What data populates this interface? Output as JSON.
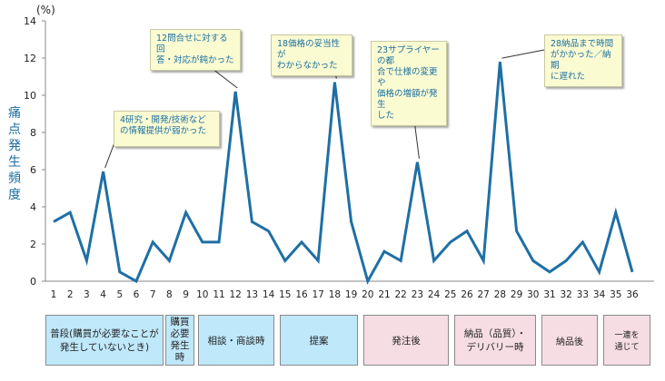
{
  "chart_data": {
    "type": "line",
    "y_unit_label": "(%)",
    "ylabel": "痛点発生頻度",
    "ylim": [
      0,
      14
    ],
    "yticks": [
      "0",
      "2",
      "4",
      "6",
      "8",
      "10",
      "12",
      "14"
    ],
    "categories": [
      "1",
      "2",
      "3",
      "4",
      "5",
      "6",
      "7",
      "8",
      "9",
      "10",
      "11",
      "12",
      "13",
      "14",
      "15",
      "16",
      "17",
      "18",
      "19",
      "20",
      "21",
      "22",
      "23",
      "24",
      "25",
      "26",
      "27",
      "28",
      "29",
      "30",
      "31",
      "32",
      "33",
      "34",
      "35",
      "36"
    ],
    "values": [
      3.2,
      3.7,
      1.1,
      5.9,
      0.5,
      0.0,
      2.1,
      1.1,
      3.7,
      2.1,
      2.1,
      10.2,
      3.2,
      2.7,
      1.1,
      2.1,
      1.1,
      10.7,
      3.2,
      0.0,
      1.6,
      1.1,
      6.4,
      1.1,
      2.1,
      2.7,
      1.1,
      11.8,
      2.7,
      1.1,
      0.5,
      1.1,
      2.1,
      0.5,
      3.7,
      0.5
    ],
    "grid": false,
    "line_color": "#1f6fa5",
    "annotations": [
      {
        "x": "4",
        "text": "4研究・開発/技術など\nの情報提供が弱かった"
      },
      {
        "x": "12",
        "text": "12問合せに対する回\n答・対応が鈍かった"
      },
      {
        "x": "18",
        "text": "18価格の妥当性が\nわからなかった"
      },
      {
        "x": "23",
        "text": "23サプライヤーの都\n合で仕様の変更や\n価格の増額が発生\nした"
      },
      {
        "x": "28",
        "text": "28納品まで時間\nがかかった／納期\nに遅れた"
      }
    ]
  },
  "phases": [
    {
      "label": "普段(購買が必要なことが\n発生していないとき)",
      "color": "#bfe8fb"
    },
    {
      "label": "購買\n必要\n発生\n時",
      "color": "#bfe8fb"
    },
    {
      "label": "相談・商談時",
      "color": "#bfe8fb"
    },
    {
      "label": "提案",
      "color": "#bfe8fb"
    },
    {
      "label": "発注後",
      "color": "#f6dde4"
    },
    {
      "label": "納品（品質）・\nデリバリー時",
      "color": "#f6dde4"
    },
    {
      "label": "納品後",
      "color": "#f6dde4"
    },
    {
      "label": "一連を\n通じて",
      "color": "#f6dde4"
    }
  ]
}
